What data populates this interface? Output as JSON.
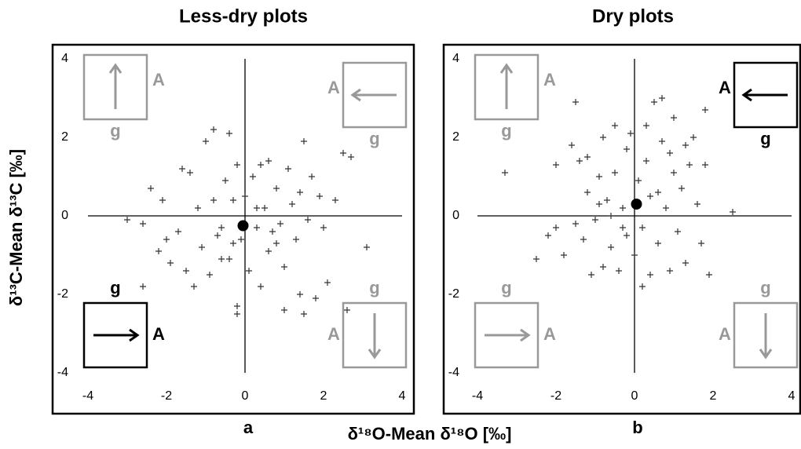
{
  "figure": {
    "xlabel": "δ¹⁸O-Mean δ¹⁸O [‰]",
    "ylabel": "δ¹³C-Mean δ¹³C [‰]"
  },
  "chart_data": [
    {
      "type": "scatter",
      "title": "Less-dry plots",
      "panel_label": "a",
      "xlim": [
        -4,
        4
      ],
      "ylim": [
        -4,
        4
      ],
      "xticks": [
        -4,
        -2,
        0,
        2,
        4
      ],
      "yticks": [
        -4,
        -2,
        0,
        2,
        4
      ],
      "series": [
        {
          "color": "#333333",
          "marker": "plus",
          "x": [
            -3,
            -2.6,
            -2.4,
            -2.1,
            -2.0,
            -1.9,
            -1.7,
            -1.6,
            -1.5,
            -1.4,
            -1.2,
            -1.1,
            -1.0,
            -0.9,
            -0.8,
            -0.8,
            -0.7,
            -0.6,
            -0.5,
            -0.4,
            -0.4,
            -0.3,
            -0.3,
            -0.2,
            -0.2,
            -0.2,
            -0.1,
            0.0,
            0.1,
            0.2,
            0.3,
            0.4,
            0.4,
            0.5,
            0.6,
            0.6,
            0.7,
            0.8,
            0.9,
            1.0,
            1.1,
            1.2,
            1.3,
            1.4,
            1.5,
            1.5,
            1.6,
            1.7,
            1.8,
            1.9,
            2.0,
            2.1,
            2.3,
            2.5,
            2.7,
            3.1,
            1.0,
            1.4,
            -1.3,
            -2.2,
            0.3,
            -0.6,
            0.8,
            2.6,
            -2.6
          ],
          "y": [
            -0.1,
            -0.2,
            0.7,
            0.4,
            -0.6,
            -1.2,
            -0.4,
            1.2,
            -1.4,
            1.1,
            0.2,
            -0.8,
            1.9,
            -1.5,
            2.2,
            0.4,
            -0.5,
            -0.3,
            0.9,
            2.1,
            -1.1,
            0.4,
            -0.7,
            1.3,
            -2.5,
            -2.3,
            -0.6,
            0.5,
            -1.4,
            1.0,
            -0.3,
            1.3,
            -1.8,
            0.2,
            -0.9,
            1.4,
            -0.4,
            0.7,
            -0.2,
            -1.3,
            1.2,
            0.3,
            -0.6,
            0.6,
            -2.5,
            1.9,
            -0.1,
            1.0,
            -2.1,
            0.5,
            -0.3,
            -1.7,
            0.4,
            1.6,
            1.5,
            -0.8,
            -2.4,
            -2.0,
            -1.8,
            -0.9,
            0.2,
            -1.1,
            -0.7,
            -2.4,
            -1.8
          ]
        },
        {
          "color": "#000000",
          "marker": "dot",
          "x": [
            -0.05
          ],
          "y": [
            -0.25
          ]
        }
      ],
      "boxes": [
        {
          "corner": "top-left",
          "arrow": "up",
          "color": "#999999",
          "a": "A",
          "g": "g"
        },
        {
          "corner": "top-right",
          "arrow": "left",
          "color": "#999999",
          "a": "A",
          "g": "g"
        },
        {
          "corner": "bottom-left",
          "arrow": "right",
          "color": "#000000",
          "a": "A",
          "g": "g"
        },
        {
          "corner": "bottom-right",
          "arrow": "down",
          "color": "#999999",
          "a": "A",
          "g": "g"
        }
      ]
    },
    {
      "type": "scatter",
      "title": "Dry plots",
      "panel_label": "b",
      "xlim": [
        -4,
        4
      ],
      "ylim": [
        -4,
        4
      ],
      "xticks": [
        -4,
        -2,
        0,
        2,
        4
      ],
      "yticks": [
        -4,
        -2,
        0,
        2,
        4
      ],
      "series": [
        {
          "color": "#333333",
          "marker": "plus",
          "x": [
            -3.3,
            -2.5,
            -2.2,
            -2.0,
            -2.0,
            -1.8,
            -1.6,
            -1.5,
            -1.3,
            -1.2,
            -1.2,
            -1.1,
            -1.0,
            -0.9,
            -0.8,
            -0.8,
            -0.7,
            -0.6,
            -0.5,
            -0.5,
            -0.4,
            -0.3,
            -0.2,
            -0.2,
            -0.1,
            0.0,
            0.1,
            0.2,
            0.3,
            0.3,
            0.4,
            0.4,
            0.5,
            0.6,
            0.7,
            0.7,
            0.8,
            0.9,
            1.0,
            1.0,
            1.1,
            1.2,
            1.3,
            1.3,
            1.5,
            1.6,
            1.7,
            1.8,
            1.9,
            2.5,
            -1.5,
            -0.6,
            0.2,
            1.4,
            -1.4,
            0.6,
            -0.3,
            1.8,
            0.9,
            -0.9
          ],
          "y": [
            1.1,
            -1.1,
            -0.5,
            1.3,
            -0.3,
            -1.0,
            1.8,
            -0.2,
            -0.6,
            1.5,
            0.6,
            -1.5,
            -0.1,
            1.0,
            2.0,
            -1.3,
            0.4,
            -0.8,
            2.3,
            1.1,
            -1.4,
            0.2,
            1.7,
            -0.5,
            2.1,
            -1.0,
            0.9,
            -0.3,
            2.3,
            1.4,
            -1.5,
            0.5,
            2.9,
            -0.7,
            1.9,
            3.0,
            0.2,
            -1.4,
            2.5,
            1.1,
            -0.4,
            0.7,
            1.8,
            -1.2,
            2.0,
            0.3,
            -0.7,
            1.3,
            -1.5,
            0.1,
            2.9,
            0.0,
            -1.8,
            1.3,
            1.4,
            0.6,
            -0.3,
            2.7,
            1.6,
            0.3
          ]
        },
        {
          "color": "#000000",
          "marker": "dot",
          "x": [
            0.05
          ],
          "y": [
            0.3
          ]
        }
      ],
      "boxes": [
        {
          "corner": "top-left",
          "arrow": "up",
          "color": "#999999",
          "a": "A",
          "g": "g"
        },
        {
          "corner": "top-right",
          "arrow": "left",
          "color": "#000000",
          "a": "A",
          "g": "g"
        },
        {
          "corner": "bottom-left",
          "arrow": "right",
          "color": "#999999",
          "a": "A",
          "g": "g"
        },
        {
          "corner": "bottom-right",
          "arrow": "down",
          "color": "#999999",
          "a": "A",
          "g": "g"
        }
      ]
    }
  ]
}
